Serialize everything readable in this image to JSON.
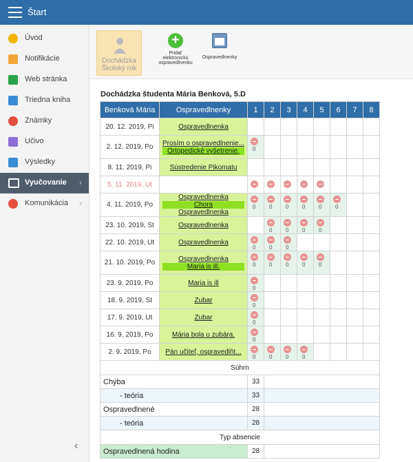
{
  "topbar": {
    "title": "Štart"
  },
  "sidebar": {
    "items": [
      {
        "label": "Úvod",
        "icon": "star-icon",
        "color": "#f2b600"
      },
      {
        "label": "Notifikácie",
        "icon": "mail-icon",
        "color": "#f3a73a"
      },
      {
        "label": "Web stránka",
        "icon": "house-icon",
        "color": "#2aa34a"
      },
      {
        "label": "Triedna kniha",
        "icon": "book-icon",
        "color": "#3b8bd4"
      },
      {
        "label": "Známky",
        "icon": "grade-icon",
        "color": "#e34f3f"
      },
      {
        "label": "Učivo",
        "icon": "person-icon",
        "color": "#8b6ed6"
      },
      {
        "label": "Výsledky",
        "icon": "bar-chart-icon",
        "color": "#3b8bd4"
      },
      {
        "label": "Vyučovanie",
        "icon": "open-book-icon",
        "color": "#ffffff",
        "active": true
      },
      {
        "label": "Komunikácia",
        "icon": "chat-icon",
        "color": "#e34f3f"
      }
    ],
    "collapse": "‹"
  },
  "toolbar": {
    "dochadzka_line1": "Dochádzka",
    "dochadzka_line2": "Školský rok",
    "add_label": "Pridať elektronickú ospravedlnenku",
    "add_symbol": "+",
    "osp_label": "Ospravedlnenky"
  },
  "heading": "Dochádzka študenta Mária Benková, 5.D",
  "table": {
    "headers": [
      "Benková Mária",
      "Ospravedlnenky",
      "1",
      "2",
      "3",
      "4",
      "5",
      "6",
      "7",
      "8"
    ],
    "rows": [
      {
        "date": "20. 12. 2019, Pi",
        "excuses": [
          "Ospravedlnenka"
        ],
        "absences": []
      },
      {
        "date": "2. 12. 2019, Po",
        "excuses": [
          "Prosím o ospravedlnenie...",
          "Ortopedické vyšetrenie."
        ],
        "absences": [
          1
        ]
      },
      {
        "date": "8. 11. 2019, Pi",
        "excuses": [
          "Sústredenie Pikomatu"
        ],
        "absences": []
      },
      {
        "date": "5. 11. 2019, Ut",
        "excuses": [],
        "future": true,
        "absences": [
          1,
          2,
          3,
          4,
          5
        ]
      },
      {
        "date": "4. 11. 2019, Po",
        "excuses": [
          "Ospravedlnenka",
          "Chora",
          "Ospravedlnenka"
        ],
        "absences": [
          1,
          2,
          3,
          4,
          5,
          6
        ]
      },
      {
        "date": "23. 10. 2019, St",
        "excuses": [
          "Ospravedlnenka"
        ],
        "absences": [
          2,
          3,
          4,
          5
        ]
      },
      {
        "date": "22. 10. 2019, Ut",
        "excuses": [
          "Ospravedlnenka"
        ],
        "absences": [
          1,
          2,
          3
        ]
      },
      {
        "date": "21. 10. 2019, Po",
        "excuses": [
          "Ospravedlnenka",
          "Maria is ill."
        ],
        "absences": [
          1,
          2,
          3,
          4,
          5
        ]
      },
      {
        "date": "23. 9. 2019, Po",
        "excuses": [
          "Maria is ill"
        ],
        "absences": [
          1
        ]
      },
      {
        "date": "18. 9. 2019, St",
        "excuses": [
          "Zubar"
        ],
        "absences": [
          1
        ]
      },
      {
        "date": "17. 9. 2019, Ut",
        "excuses": [
          "Zubar"
        ],
        "absences": [
          1
        ]
      },
      {
        "date": "16. 9. 2019, Po",
        "excuses": [
          "Mária bola u zubára."
        ],
        "absences": [
          1
        ]
      },
      {
        "date": "2. 9. 2019, Po",
        "excuses": [
          "Pán učiteľ, ospravedlňt..."
        ],
        "absences": [
          1,
          2,
          3,
          4
        ]
      }
    ],
    "zero": "0",
    "summary_title": "Súhrn",
    "summary": [
      {
        "label": "Chýba",
        "value": "33"
      },
      {
        "label": "- teória",
        "value": "33",
        "indent": true
      },
      {
        "label": "Ospravedlnené",
        "value": "28"
      },
      {
        "label": "- teória",
        "value": "28",
        "indent": true
      }
    ],
    "type_title": "Typ absencie",
    "types": [
      {
        "label": "Ospravedlnená hodina",
        "value": "28"
      }
    ]
  }
}
